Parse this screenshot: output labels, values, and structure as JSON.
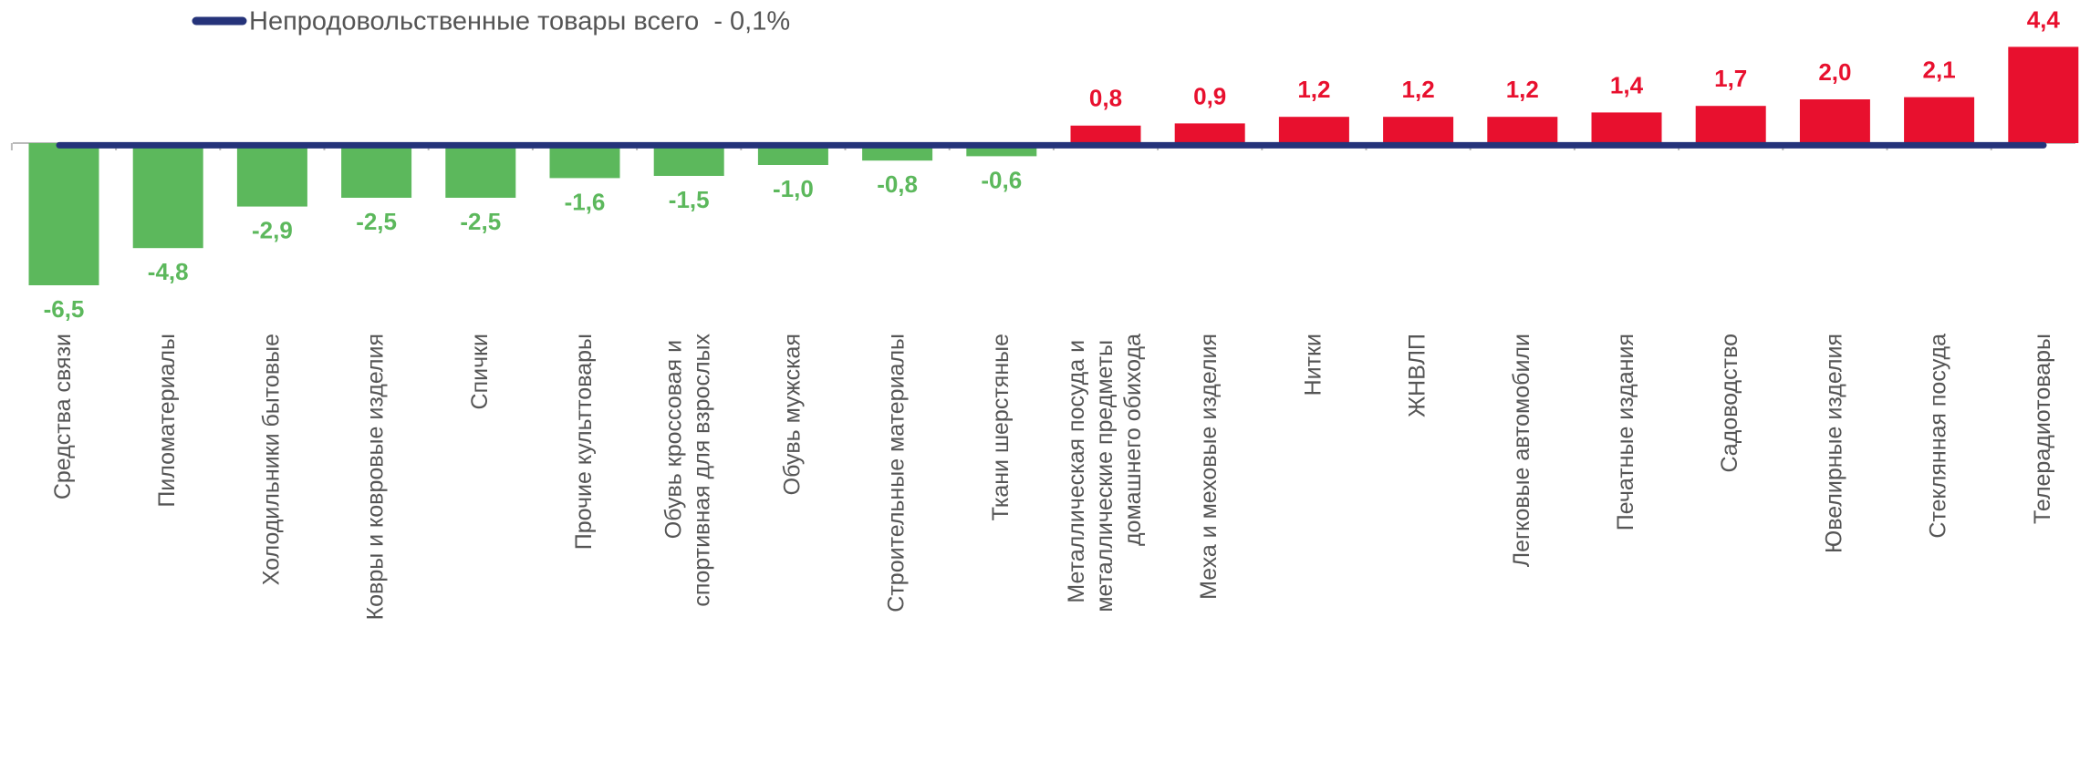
{
  "chart_data": {
    "type": "bar",
    "categories": [
      "Средства связи",
      "Пиломатериалы",
      "Холодильники бытовые",
      "Ковры и ковровые изделия",
      "Спички",
      "Прочие культтовары",
      "Обувь кроссовая и спортивная для взрослых",
      "Обувь мужская",
      "Строительные материалы",
      "Ткани шерстяные",
      "Металлическая посуда и металлические предметы домашнего обихода",
      "Меха и меховые изделия",
      "Нитки",
      "ЖНВЛП",
      "Легковые автомобили",
      "Печатные издания",
      "Садоводство",
      "Ювелирные изделия",
      "Стеклянная посуда",
      "Телерадиотовары"
    ],
    "values": [
      -6.5,
      -4.8,
      -2.9,
      -2.5,
      -2.5,
      -1.6,
      -1.5,
      -1.0,
      -0.8,
      -0.6,
      0.8,
      0.9,
      1.2,
      1.2,
      1.2,
      1.4,
      1.7,
      2.0,
      2.1,
      4.4
    ],
    "value_labels": [
      "-6,5",
      "-4,8",
      "-2,9",
      "-2,5",
      "-2,5",
      "-1,6",
      "-1,5",
      "-1,0",
      "-0,8",
      "-0,6",
      "0,8",
      "0,9",
      "1,2",
      "1,2",
      "1,2",
      "1,4",
      "1,7",
      "2,0",
      "2,1",
      "4,4"
    ],
    "color_negative": "#5cb85c",
    "color_positive": "#e8102e",
    "reference_line": {
      "label": "Непродовольственные товары всего  - 0,1%",
      "value": -0.1,
      "color": "#25337a"
    }
  }
}
